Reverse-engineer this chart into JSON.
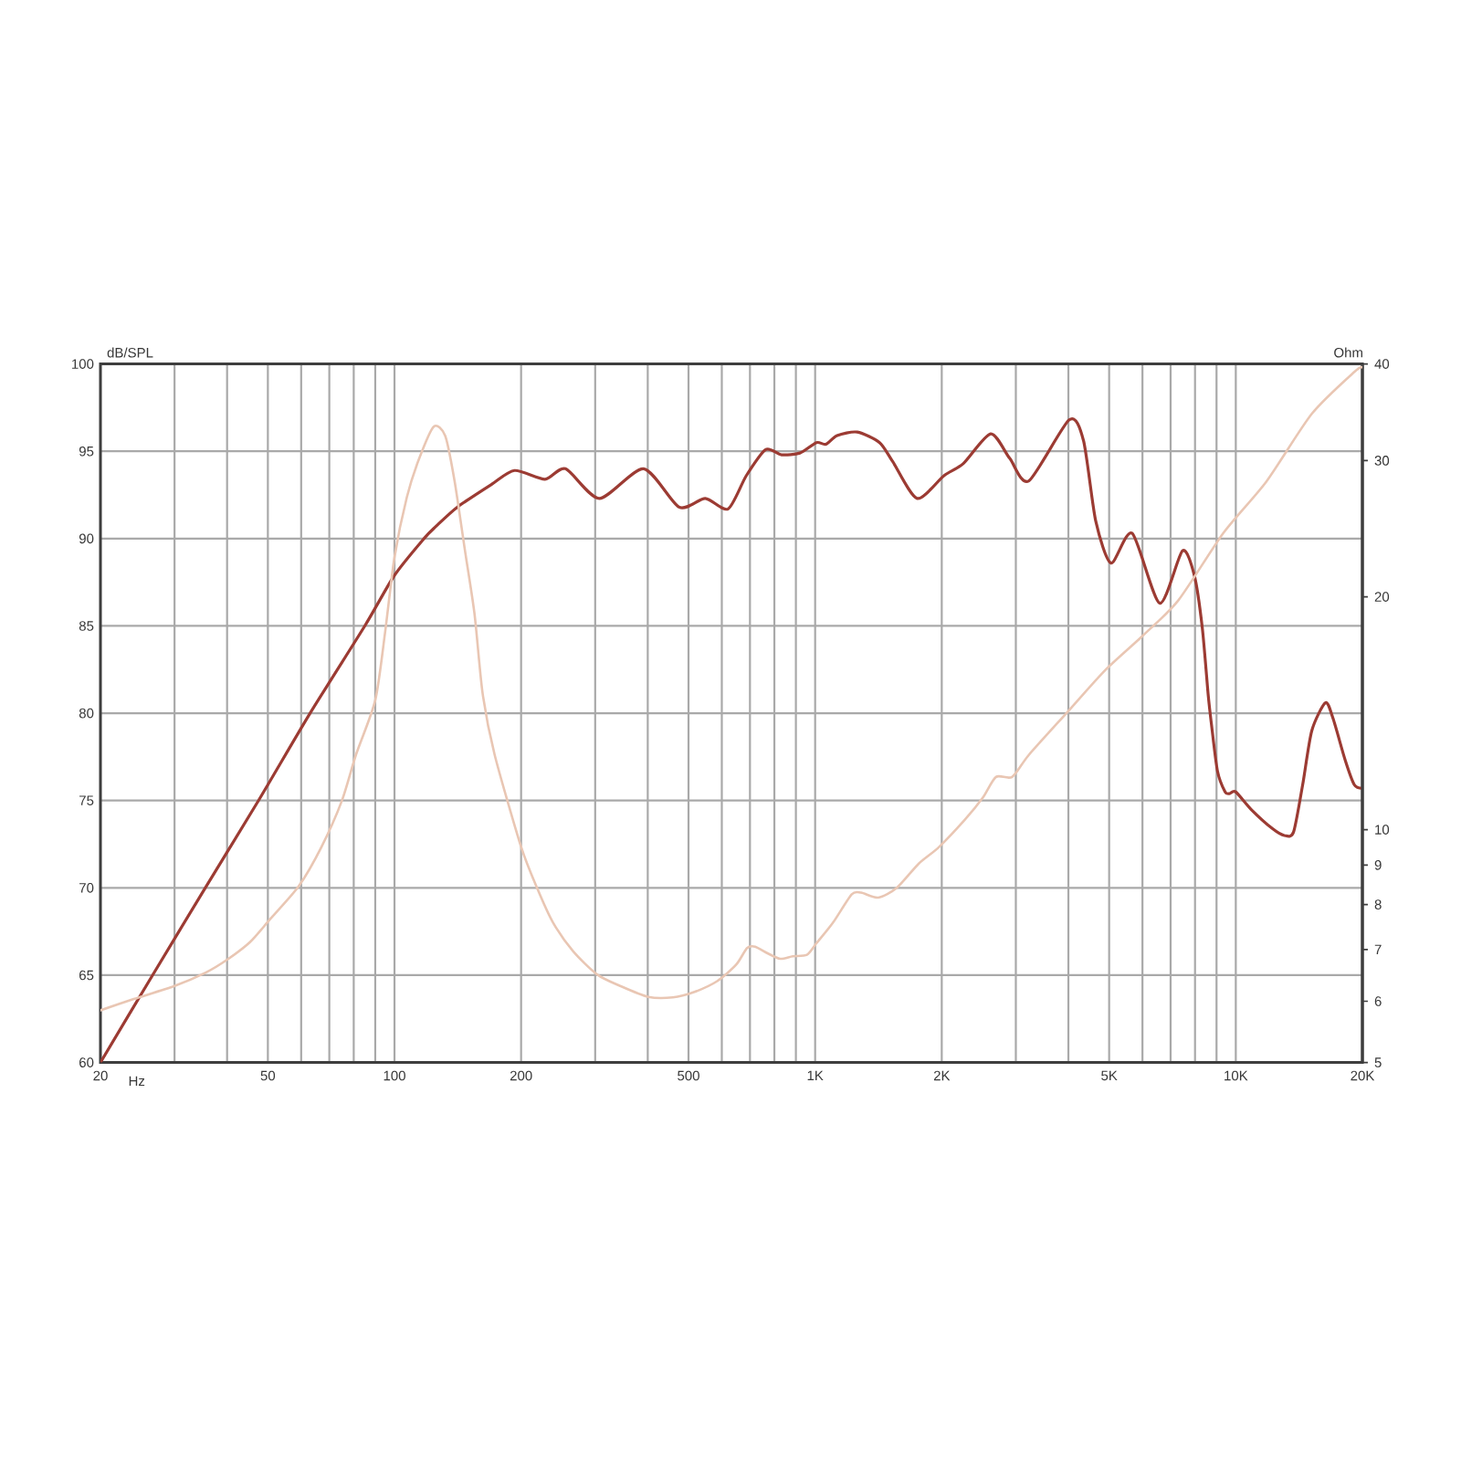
{
  "chart_data": {
    "type": "line",
    "xlabel": "Hz",
    "ylabel": "Ohm",
    "y2label": "dB/SPL",
    "log": "xy",
    "grid": true,
    "xlim": [
      20,
      20000
    ],
    "ylim": [
      5,
      40
    ],
    "y2lim": [
      60,
      100
    ],
    "xticks": [
      20,
      {
        "value": 30,
        "label": null
      },
      {
        "value": 40,
        "label": null
      },
      50,
      {
        "value": 60,
        "label": null
      },
      {
        "value": 70,
        "label": null
      },
      {
        "value": 80,
        "label": null
      },
      {
        "value": 90,
        "label": null
      },
      100,
      200,
      {
        "value": 300,
        "label": null
      },
      {
        "value": 400,
        "label": null
      },
      500,
      {
        "value": 600,
        "label": null
      },
      {
        "value": 700,
        "label": null
      },
      {
        "value": 800,
        "label": null
      },
      {
        "value": 900,
        "label": null
      },
      {
        "value": 1000,
        "label": "1K"
      },
      {
        "value": 2000,
        "label": "2K"
      },
      {
        "value": 3000,
        "label": null
      },
      {
        "value": 4000,
        "label": null
      },
      {
        "value": 5000,
        "label": "5K"
      },
      {
        "value": 6000,
        "label": null
      },
      {
        "value": 7000,
        "label": null
      },
      {
        "value": 8000,
        "label": null
      },
      {
        "value": 9000,
        "label": null
      },
      {
        "value": 10000,
        "label": "10K"
      },
      {
        "value": 20000,
        "label": "20K"
      }
    ],
    "yticks": [
      5,
      6,
      7,
      8,
      9,
      10,
      20,
      30,
      40
    ],
    "y2ticks": [
      60,
      65,
      70,
      75,
      80,
      85,
      90,
      95,
      100
    ],
    "series": [
      {
        "color": "#9c3b33",
        "axis": "y2",
        "x": [
          20,
          26.6,
          35.5,
          47.5,
          63,
          85,
          100,
          117.5,
          125.5,
          141,
          170,
          193,
          228,
          255,
          307,
          391,
          475,
          548,
          621,
          686,
          763,
          832,
          920,
          1007,
          1060,
          1128,
          1259,
          1423,
          1530,
          1748,
          2024,
          2251,
          2614,
          2900,
          3220,
          4018,
          4346,
          4646,
          5050,
          5672,
          6592,
          7470,
          7970,
          8324,
          8602,
          8750,
          9044,
          9432,
          9670,
          9990,
          10870,
          12210,
          13050,
          13720,
          14420,
          15160,
          16340,
          17030,
          18210,
          19140,
          20000
        ],
        "values": [
          60.0,
          65.0,
          70.0,
          75.0,
          80.0,
          85.0,
          87.9,
          90.0,
          90.7,
          91.8,
          93.1,
          93.9,
          93.4,
          94.0,
          92.3,
          94.0,
          91.8,
          92.3,
          91.7,
          93.6,
          95.1,
          94.8,
          94.9,
          95.5,
          95.4,
          95.9,
          96.1,
          95.5,
          94.4,
          92.3,
          93.6,
          94.3,
          96.0,
          94.6,
          93.3,
          96.8,
          95.6,
          91.0,
          88.6,
          90.3,
          86.3,
          89.3,
          87.9,
          84.9,
          81.0,
          79.4,
          76.7,
          75.5,
          75.4,
          75.5,
          74.5,
          73.4,
          73.0,
          73.2,
          75.9,
          79.0,
          80.6,
          79.7,
          77.3,
          75.9,
          75.7
        ]
      },
      {
        "color": "#e9c6b3",
        "x": [
          20,
          24,
          30,
          35.5,
          40,
          45.4,
          50.6,
          59.2,
          67,
          75,
          81,
          90,
          95,
          100,
          107,
          114.5,
          124,
          132,
          139,
          147,
          155,
          162,
          173,
          200,
          219,
          238,
          266,
          303,
          344,
          401,
          459,
          513,
          585,
          649,
          689,
          720,
          771,
          826,
          885,
          956,
          1007,
          1104,
          1222,
          1286,
          1413,
          1564,
          1764,
          1968,
          2270,
          2504,
          2691,
          2940,
          3225,
          3983,
          4906,
          6000,
          7305,
          9350,
          11830,
          15170,
          19170,
          20000
        ],
        "values": [
          5.84,
          6.04,
          6.28,
          6.53,
          6.79,
          7.16,
          7.66,
          8.45,
          9.49,
          10.9,
          12.5,
          14.7,
          18.0,
          22.5,
          26.9,
          30.2,
          33.2,
          32.3,
          28.2,
          23.0,
          19.0,
          15.0,
          12.5,
          9.5,
          8.37,
          7.59,
          6.96,
          6.5,
          6.28,
          6.08,
          6.07,
          6.16,
          6.37,
          6.69,
          7.03,
          7.06,
          6.92,
          6.81,
          6.86,
          6.89,
          7.13,
          7.59,
          8.25,
          8.29,
          8.17,
          8.41,
          9.04,
          9.49,
          10.3,
          11.0,
          11.7,
          11.7,
          12.5,
          14.2,
          16.1,
          17.8,
          19.8,
          24.2,
          28.2,
          34.5,
          39.1,
          39.6
        ]
      }
    ]
  }
}
